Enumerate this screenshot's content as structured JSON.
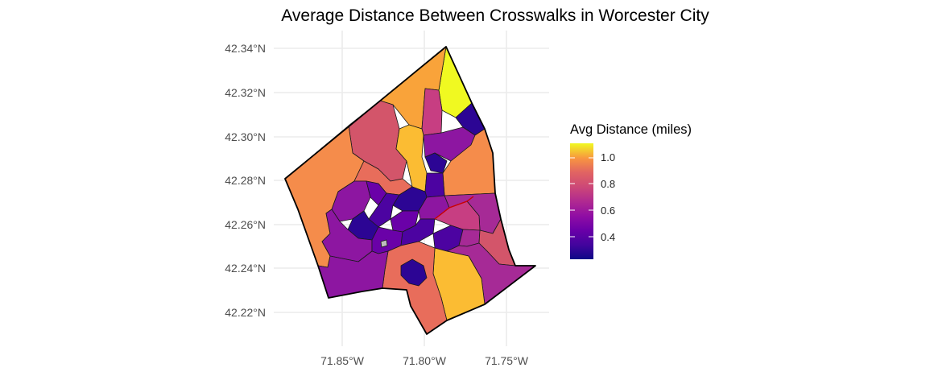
{
  "title": "Average Distance Between Crosswalks in Worcester City",
  "axes": {
    "y_ticks": [
      "42.34°N",
      "42.32°N",
      "42.30°N",
      "42.28°N",
      "42.26°N",
      "42.24°N",
      "42.22°N"
    ],
    "x_ticks": [
      "71.85°W",
      "71.80°W",
      "71.75°W"
    ]
  },
  "legend": {
    "title": "Avg Distance (miles)",
    "ticks": [
      "1.0",
      "0.8",
      "0.6",
      "0.4"
    ],
    "palette": "plasma",
    "range": [
      0.22,
      1.09
    ]
  },
  "colors": {
    "c1": "#f0f921",
    "c2": "#fbbc33",
    "c3": "#f9a33a",
    "c4": "#f58c4b",
    "c5": "#e86d5b",
    "c6": "#d3556a",
    "c7": "#c73e82",
    "c8": "#a62a96",
    "c9": "#8d16a1",
    "c10": "#6a01a8",
    "c11": "#4c03a1",
    "c12": "#2c0594",
    "na": "#bdbdbd",
    "highlight": "#cc0000"
  }
}
